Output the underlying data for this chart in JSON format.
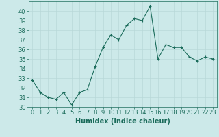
{
  "x": [
    0,
    1,
    2,
    3,
    4,
    5,
    6,
    7,
    8,
    9,
    10,
    11,
    12,
    13,
    14,
    15,
    16,
    17,
    18,
    19,
    20,
    21,
    22,
    23
  ],
  "y": [
    32.8,
    31.5,
    31.0,
    30.8,
    31.5,
    30.2,
    31.5,
    31.8,
    34.2,
    36.2,
    37.5,
    37.0,
    38.5,
    39.2,
    39.0,
    40.5,
    35.0,
    36.5,
    36.2,
    36.2,
    35.2,
    34.8,
    35.2,
    35.0
  ],
  "line_color": "#1a6b5a",
  "marker": "+",
  "background_color": "#cce9e9",
  "grid_color": "#b8d8d8",
  "xlabel": "Humidex (Indice chaleur)",
  "ylim": [
    30,
    41
  ],
  "xlim": [
    -0.5,
    23.5
  ],
  "yticks": [
    30,
    31,
    32,
    33,
    34,
    35,
    36,
    37,
    38,
    39,
    40
  ],
  "xticks": [
    0,
    1,
    2,
    3,
    4,
    5,
    6,
    7,
    8,
    9,
    10,
    11,
    12,
    13,
    14,
    15,
    16,
    17,
    18,
    19,
    20,
    21,
    22,
    23
  ],
  "tick_color": "#1a6b5a",
  "label_color": "#1a6b5a",
  "spine_color": "#1a6b5a",
  "font_size": 6,
  "xlabel_fontsize": 7,
  "markersize": 3,
  "linewidth": 0.8
}
